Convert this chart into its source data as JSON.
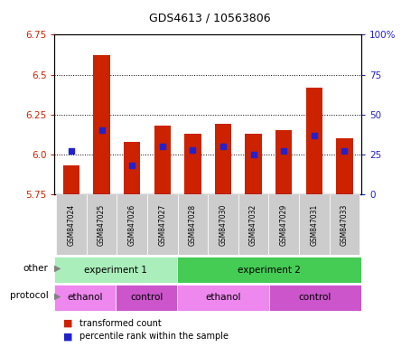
{
  "title": "GDS4613 / 10563806",
  "samples": [
    "GSM847024",
    "GSM847025",
    "GSM847026",
    "GSM847027",
    "GSM847028",
    "GSM847030",
    "GSM847032",
    "GSM847029",
    "GSM847031",
    "GSM847033"
  ],
  "red_values": [
    5.93,
    6.62,
    6.08,
    6.18,
    6.13,
    6.19,
    6.13,
    6.15,
    6.42,
    6.1
  ],
  "blue_values": [
    27,
    40,
    18,
    30,
    28,
    30,
    25,
    27,
    37,
    27
  ],
  "ylim_left": [
    5.75,
    6.75
  ],
  "ylim_right": [
    0,
    100
  ],
  "yticks_left": [
    5.75,
    6.0,
    6.25,
    6.5,
    6.75
  ],
  "yticks_right": [
    0,
    25,
    50,
    75,
    100
  ],
  "bar_bottom": 5.75,
  "red_color": "#cc2200",
  "blue_color": "#2222cc",
  "grid_color": "#000000",
  "groups": [
    {
      "label": "experiment 1",
      "start": 0,
      "end": 4,
      "color": "#aaeebb"
    },
    {
      "label": "experiment 2",
      "start": 4,
      "end": 10,
      "color": "#44cc55"
    }
  ],
  "protocols": [
    {
      "label": "ethanol",
      "start": 0,
      "end": 2,
      "color": "#ee88ee"
    },
    {
      "label": "control",
      "start": 2,
      "end": 4,
      "color": "#cc55cc"
    },
    {
      "label": "ethanol",
      "start": 4,
      "end": 7,
      "color": "#ee88ee"
    },
    {
      "label": "control",
      "start": 7,
      "end": 10,
      "color": "#cc55cc"
    }
  ],
  "bg_color": "#ffffff",
  "tick_label_color_left": "#cc2200",
  "tick_label_color_right": "#2222cc",
  "sample_bg": "#cccccc"
}
